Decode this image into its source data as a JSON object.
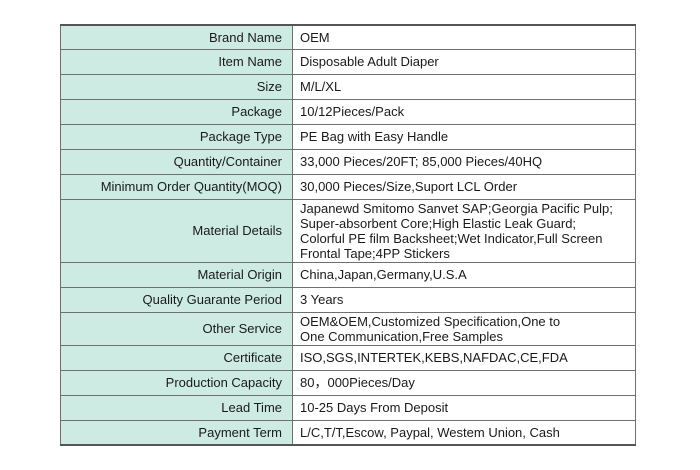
{
  "table": {
    "rows": [
      {
        "label": "Brand Name",
        "value": [
          "OEM"
        ]
      },
      {
        "label": "Item Name",
        "value": [
          "Disposable Adult Diaper"
        ]
      },
      {
        "label": "Size",
        "value": [
          "M/L/XL"
        ]
      },
      {
        "label": "Package",
        "value": [
          "10/12Pieces/Pack"
        ]
      },
      {
        "label": "Package Type",
        "value": [
          "PE Bag with Easy Handle"
        ]
      },
      {
        "label": "Quantity/Container",
        "value": [
          "33,000 Pieces/20FT; 85,000 Pieces/40HQ"
        ]
      },
      {
        "label": "Minimum Order Quantity(MOQ)",
        "value": [
          "30,000 Pieces/Size,Suport LCL Order"
        ]
      },
      {
        "label": "Material Details",
        "value": [
          "Japanewd Smitomo Sanvet SAP;Georgia Pacific Pulp;",
          "Super-absorbent Core;High Elastic Leak Guard;",
          "Colorful PE film Backsheet;Wet Indicator,Full Screen",
          "Frontal Tape;4PP Stickers"
        ]
      },
      {
        "label": "Material Origin",
        "value": [
          "China,Japan,Germany,U.S.A"
        ]
      },
      {
        "label": "Quality Guarante Period",
        "value": [
          "3 Years"
        ]
      },
      {
        "label": "Other Service",
        "value": [
          "OEM&OEM,Customized Specification,One to",
          "One Communication,Free Samples"
        ]
      },
      {
        "label": "Certificate",
        "value": [
          "ISO,SGS,INTERTEK,KEBS,NAFDAC,CE,FDA"
        ]
      },
      {
        "label": "Production Capacity",
        "value": [
          "80，000Pieces/Day"
        ]
      },
      {
        "label": "Lead Time",
        "value": [
          "10-25 Days From Deposit"
        ]
      },
      {
        "label": "Payment Term",
        "value": [
          "L/C,T/T,Escow, Paypal, Westem Union, Cash"
        ]
      }
    ]
  }
}
